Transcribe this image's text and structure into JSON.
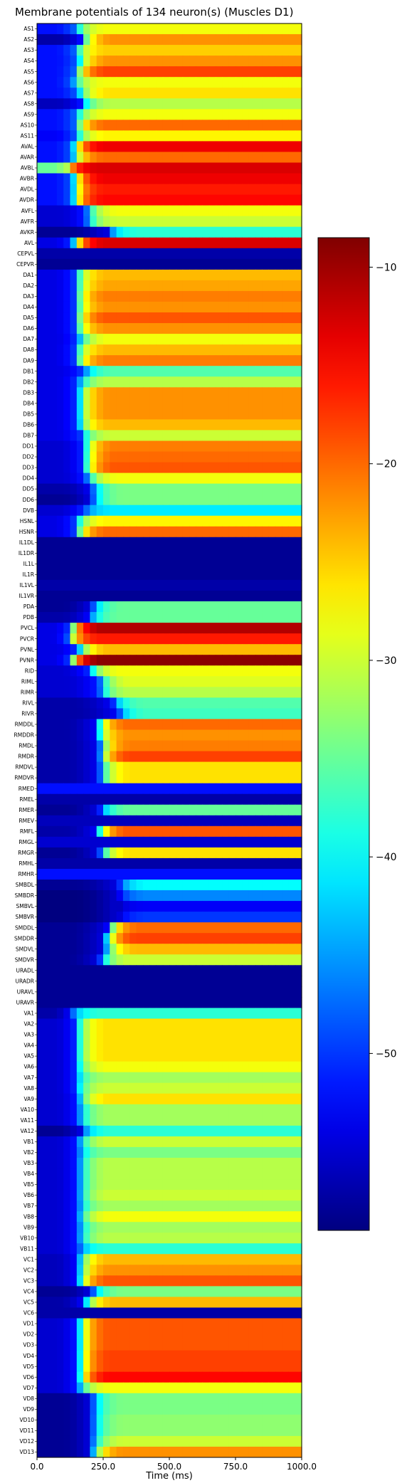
{
  "chart_data": {
    "type": "heatmap",
    "title": "Membrane potentials of 134 neuron(s) (Muscles D1)",
    "xlabel": "Time (ms)",
    "xlim": [
      0,
      1000
    ],
    "x_ticks": [
      "0.0",
      "250.0",
      "500.0",
      "750.0",
      "1000.0"
    ],
    "colormap": "jet",
    "color_range": [
      -59,
      -8.5
    ],
    "colorbar_ticks": [
      {
        "value": -10,
        "label": "−10"
      },
      {
        "value": -20,
        "label": "−20"
      },
      {
        "value": -30,
        "label": "−30"
      },
      {
        "value": -40,
        "label": "−40"
      },
      {
        "value": -50,
        "label": "−50"
      }
    ],
    "neurons": [
      {
        "name": "AS1",
        "rest": -50,
        "rise_ms": 140,
        "final": -28
      },
      {
        "name": "AS2",
        "rest": -55,
        "rise_ms": 160,
        "final": -22
      },
      {
        "name": "AS3",
        "rest": -50,
        "rise_ms": 140,
        "final": -25
      },
      {
        "name": "AS4",
        "rest": -50,
        "rise_ms": 150,
        "final": -22
      },
      {
        "name": "AS5",
        "rest": -50,
        "rise_ms": 140,
        "final": -18
      },
      {
        "name": "AS6",
        "rest": -50,
        "rise_ms": 130,
        "final": -28
      },
      {
        "name": "AS7",
        "rest": -50,
        "rise_ms": 150,
        "final": -26
      },
      {
        "name": "AS8",
        "rest": -54,
        "rise_ms": 160,
        "final": -31
      },
      {
        "name": "AS9",
        "rest": -50,
        "rise_ms": 140,
        "final": -28
      },
      {
        "name": "AS10",
        "rest": -50,
        "rise_ms": 140,
        "final": -20
      },
      {
        "name": "AS11",
        "rest": -51,
        "rise_ms": 140,
        "final": -27
      },
      {
        "name": "AVAL",
        "rest": -50,
        "rise_ms": 130,
        "final": -14
      },
      {
        "name": "AVAR",
        "rest": -50,
        "rise_ms": 130,
        "final": -20
      },
      {
        "name": "AVBL",
        "rest": -33,
        "rise_ms": 110,
        "final": -13
      },
      {
        "name": "AVBR",
        "rest": -50,
        "rise_ms": 130,
        "final": -14
      },
      {
        "name": "AVDL",
        "rest": -50,
        "rise_ms": 130,
        "final": -16
      },
      {
        "name": "AVDR",
        "rest": -50,
        "rise_ms": 130,
        "final": -15
      },
      {
        "name": "AVFL",
        "rest": -53,
        "rise_ms": 180,
        "final": -28
      },
      {
        "name": "AVFR",
        "rest": -53,
        "rise_ms": 180,
        "final": -30
      },
      {
        "name": "AVKR",
        "rest": -56,
        "rise_ms": 260,
        "final": -38
      },
      {
        "name": "AVL",
        "rest": -52,
        "rise_ms": 130,
        "final": -13
      },
      {
        "name": "CEPVL",
        "rest": -57,
        "rise_ms": 0,
        "final": -57
      },
      {
        "name": "CEPVR",
        "rest": -57,
        "rise_ms": 0,
        "final": -58
      },
      {
        "name": "DA1",
        "rest": -52,
        "rise_ms": 140,
        "final": -24
      },
      {
        "name": "DA2",
        "rest": -52,
        "rise_ms": 140,
        "final": -23
      },
      {
        "name": "DA3",
        "rest": -52,
        "rise_ms": 140,
        "final": -21
      },
      {
        "name": "DA4",
        "rest": -52,
        "rise_ms": 140,
        "final": -22
      },
      {
        "name": "DA5",
        "rest": -52,
        "rise_ms": 140,
        "final": -19
      },
      {
        "name": "DA6",
        "rest": -52,
        "rise_ms": 140,
        "final": -22
      },
      {
        "name": "DA7",
        "rest": -52,
        "rise_ms": 150,
        "final": -28
      },
      {
        "name": "DA8",
        "rest": -52,
        "rise_ms": 140,
        "final": -24
      },
      {
        "name": "DA9",
        "rest": -52,
        "rise_ms": 140,
        "final": -21
      },
      {
        "name": "DB1",
        "rest": -52,
        "rise_ms": 170,
        "final": -36
      },
      {
        "name": "DB2",
        "rest": -52,
        "rise_ms": 150,
        "final": -31
      },
      {
        "name": "DB3",
        "rest": -52,
        "rise_ms": 150,
        "final": -22
      },
      {
        "name": "DB4",
        "rest": -52,
        "rise_ms": 150,
        "final": -22
      },
      {
        "name": "DB5",
        "rest": -52,
        "rise_ms": 150,
        "final": -22
      },
      {
        "name": "DB6",
        "rest": -52,
        "rise_ms": 150,
        "final": -24
      },
      {
        "name": "DB7",
        "rest": -52,
        "rise_ms": 160,
        "final": -30
      },
      {
        "name": "DD1",
        "rest": -53,
        "rise_ms": 170,
        "final": -21
      },
      {
        "name": "DD2",
        "rest": -53,
        "rise_ms": 170,
        "final": -20
      },
      {
        "name": "DD3",
        "rest": -53,
        "rise_ms": 170,
        "final": -19
      },
      {
        "name": "DD4",
        "rest": -53,
        "rise_ms": 180,
        "final": -28
      },
      {
        "name": "DD5",
        "rest": -55,
        "rise_ms": 200,
        "final": -34
      },
      {
        "name": "DD6",
        "rest": -56,
        "rise_ms": 200,
        "final": -34
      },
      {
        "name": "DVB",
        "rest": -53,
        "rise_ms": 170,
        "final": -41
      },
      {
        "name": "HSNL",
        "rest": -52,
        "rise_ms": 140,
        "final": -27
      },
      {
        "name": "HSNR",
        "rest": -52,
        "rise_ms": 140,
        "final": -20
      },
      {
        "name": "IL1DL",
        "rest": -58,
        "rise_ms": 0,
        "final": -58
      },
      {
        "name": "IL1DR",
        "rest": -58,
        "rise_ms": 0,
        "final": -58
      },
      {
        "name": "IL1L",
        "rest": -58,
        "rise_ms": 0,
        "final": -58
      },
      {
        "name": "IL1R",
        "rest": -58,
        "rise_ms": 0,
        "final": -58
      },
      {
        "name": "IL1VL",
        "rest": -58,
        "rise_ms": 0,
        "final": -57
      },
      {
        "name": "IL1VR",
        "rest": -58,
        "rise_ms": 0,
        "final": -58
      },
      {
        "name": "PDA",
        "rest": -56,
        "rise_ms": 200,
        "final": -35
      },
      {
        "name": "PDB",
        "rest": -55,
        "rise_ms": 190,
        "final": -35
      },
      {
        "name": "PVCL",
        "rest": -52,
        "rise_ms": 120,
        "final": -11
      },
      {
        "name": "PVCR",
        "rest": -52,
        "rise_ms": 110,
        "final": -16
      },
      {
        "name": "PVNL",
        "rest": -52,
        "rise_ms": 150,
        "final": -24
      },
      {
        "name": "PVNR",
        "rest": -52,
        "rise_ms": 120,
        "final": -9
      },
      {
        "name": "RID",
        "rest": -53,
        "rise_ms": 190,
        "final": -28
      },
      {
        "name": "RIML",
        "rest": -53,
        "rise_ms": 230,
        "final": -29
      },
      {
        "name": "RIMR",
        "rest": -53,
        "rise_ms": 230,
        "final": -31
      },
      {
        "name": "RIVL",
        "rest": -55,
        "rise_ms": 280,
        "final": -36
      },
      {
        "name": "RIVR",
        "rest": -55,
        "rise_ms": 300,
        "final": -37
      },
      {
        "name": "RMDDL",
        "rest": -55,
        "rise_ms": 220,
        "final": -20
      },
      {
        "name": "RMDDR",
        "rest": -55,
        "rise_ms": 220,
        "final": -22
      },
      {
        "name": "RMDL",
        "rest": -55,
        "rise_ms": 230,
        "final": -21
      },
      {
        "name": "RMDR",
        "rest": -55,
        "rise_ms": 230,
        "final": -18
      },
      {
        "name": "RMDVL",
        "rest": -55,
        "rise_ms": 230,
        "final": -26
      },
      {
        "name": "RMDVR",
        "rest": -55,
        "rise_ms": 230,
        "final": -26
      },
      {
        "name": "RMED",
        "rest": -57,
        "rise_ms": 0,
        "final": -52
      },
      {
        "name": "RMEL",
        "rest": -57,
        "rise_ms": 0,
        "final": -57
      },
      {
        "name": "RMER",
        "rest": -56,
        "rise_ms": 230,
        "final": -35
      },
      {
        "name": "RMEV",
        "rest": -57,
        "rise_ms": 0,
        "final": -56
      },
      {
        "name": "RMFL",
        "rest": -55,
        "rise_ms": 220,
        "final": -19
      },
      {
        "name": "RMGL",
        "rest": -57,
        "rise_ms": 0,
        "final": -55
      },
      {
        "name": "RMGR",
        "rest": -56,
        "rise_ms": 230,
        "final": -26
      },
      {
        "name": "RMHL",
        "rest": -57,
        "rise_ms": 0,
        "final": -57
      },
      {
        "name": "RMHR",
        "rest": -57,
        "rise_ms": 0,
        "final": -52
      },
      {
        "name": "SMBDL",
        "rest": -56,
        "rise_ms": 300,
        "final": -40
      },
      {
        "name": "SMBDR",
        "rest": -57,
        "rise_ms": 300,
        "final": -46
      },
      {
        "name": "SMBVL",
        "rest": -57,
        "rise_ms": 300,
        "final": -53
      },
      {
        "name": "SMBVR",
        "rest": -57,
        "rise_ms": 300,
        "final": -50
      },
      {
        "name": "SMDDL",
        "rest": -56,
        "rise_ms": 260,
        "final": -20
      },
      {
        "name": "SMDDR",
        "rest": -56,
        "rise_ms": 250,
        "final": -18
      },
      {
        "name": "SMDVL",
        "rest": -56,
        "rise_ms": 250,
        "final": -24
      },
      {
        "name": "SMDVR",
        "rest": -56,
        "rise_ms": 230,
        "final": -30
      },
      {
        "name": "URADL",
        "rest": -58,
        "rise_ms": 0,
        "final": -58
      },
      {
        "name": "URADR",
        "rest": -58,
        "rise_ms": 0,
        "final": -58
      },
      {
        "name": "URAVL",
        "rest": -58,
        "rise_ms": 0,
        "final": -58
      },
      {
        "name": "URAVR",
        "rest": -58,
        "rise_ms": 0,
        "final": -58
      },
      {
        "name": "VA1",
        "rest": -55,
        "rise_ms": 120,
        "final": -38
      },
      {
        "name": "VA2",
        "rest": -53,
        "rise_ms": 140,
        "final": -26
      },
      {
        "name": "VA3",
        "rest": -53,
        "rise_ms": 140,
        "final": -26
      },
      {
        "name": "VA4",
        "rest": -53,
        "rise_ms": 140,
        "final": -26
      },
      {
        "name": "VA5",
        "rest": -53,
        "rise_ms": 140,
        "final": -26
      },
      {
        "name": "VA6",
        "rest": -53,
        "rise_ms": 140,
        "final": -28
      },
      {
        "name": "VA7",
        "rest": -53,
        "rise_ms": 140,
        "final": -32
      },
      {
        "name": "VA8",
        "rest": -53,
        "rise_ms": 140,
        "final": -30
      },
      {
        "name": "VA9",
        "rest": -53,
        "rise_ms": 150,
        "final": -26
      },
      {
        "name": "VA10",
        "rest": -53,
        "rise_ms": 150,
        "final": -32
      },
      {
        "name": "VA11",
        "rest": -53,
        "rise_ms": 150,
        "final": -32
      },
      {
        "name": "VA12",
        "rest": -56,
        "rise_ms": 160,
        "final": -38
      },
      {
        "name": "VB1",
        "rest": -53,
        "rise_ms": 150,
        "final": -30
      },
      {
        "name": "VB2",
        "rest": -53,
        "rise_ms": 150,
        "final": -34
      },
      {
        "name": "VB3",
        "rest": -53,
        "rise_ms": 150,
        "final": -31
      },
      {
        "name": "VB4",
        "rest": -53,
        "rise_ms": 150,
        "final": -31
      },
      {
        "name": "VB5",
        "rest": -53,
        "rise_ms": 150,
        "final": -31
      },
      {
        "name": "VB6",
        "rest": -53,
        "rise_ms": 150,
        "final": -30
      },
      {
        "name": "VB7",
        "rest": -53,
        "rise_ms": 150,
        "final": -32
      },
      {
        "name": "VB8",
        "rest": -53,
        "rise_ms": 150,
        "final": -28
      },
      {
        "name": "VB9",
        "rest": -53,
        "rise_ms": 150,
        "final": -32
      },
      {
        "name": "VB10",
        "rest": -53,
        "rise_ms": 150,
        "final": -31
      },
      {
        "name": "VB11",
        "rest": -53,
        "rise_ms": 150,
        "final": -38
      },
      {
        "name": "VC1",
        "rest": -54,
        "rise_ms": 150,
        "final": -24
      },
      {
        "name": "VC2",
        "rest": -54,
        "rise_ms": 150,
        "final": -22
      },
      {
        "name": "VC3",
        "rest": -54,
        "rise_ms": 150,
        "final": -19
      },
      {
        "name": "VC4",
        "rest": -56,
        "rise_ms": 200,
        "final": -34
      },
      {
        "name": "VC5",
        "rest": -55,
        "rise_ms": 170,
        "final": -24
      },
      {
        "name": "VC6",
        "rest": -58,
        "rise_ms": 0,
        "final": -57
      },
      {
        "name": "VD1",
        "rest": -53,
        "rise_ms": 150,
        "final": -19
      },
      {
        "name": "VD2",
        "rest": -53,
        "rise_ms": 150,
        "final": -19
      },
      {
        "name": "VD3",
        "rest": -53,
        "rise_ms": 150,
        "final": -19
      },
      {
        "name": "VD4",
        "rest": -53,
        "rise_ms": 150,
        "final": -18
      },
      {
        "name": "VD5",
        "rest": -53,
        "rise_ms": 150,
        "final": -18
      },
      {
        "name": "VD6",
        "rest": -53,
        "rise_ms": 150,
        "final": -15
      },
      {
        "name": "VD7",
        "rest": -53,
        "rise_ms": 150,
        "final": -28
      },
      {
        "name": "VD8",
        "rest": -56,
        "rise_ms": 200,
        "final": -34
      },
      {
        "name": "VD9",
        "rest": -56,
        "rise_ms": 200,
        "final": -34
      },
      {
        "name": "VD10",
        "rest": -56,
        "rise_ms": 200,
        "final": -33
      },
      {
        "name": "VD11",
        "rest": -56,
        "rise_ms": 200,
        "final": -33
      },
      {
        "name": "VD12",
        "rest": -56,
        "rise_ms": 200,
        "final": -30
      },
      {
        "name": "VD13",
        "rest": -56,
        "rise_ms": 200,
        "final": -22
      }
    ]
  }
}
